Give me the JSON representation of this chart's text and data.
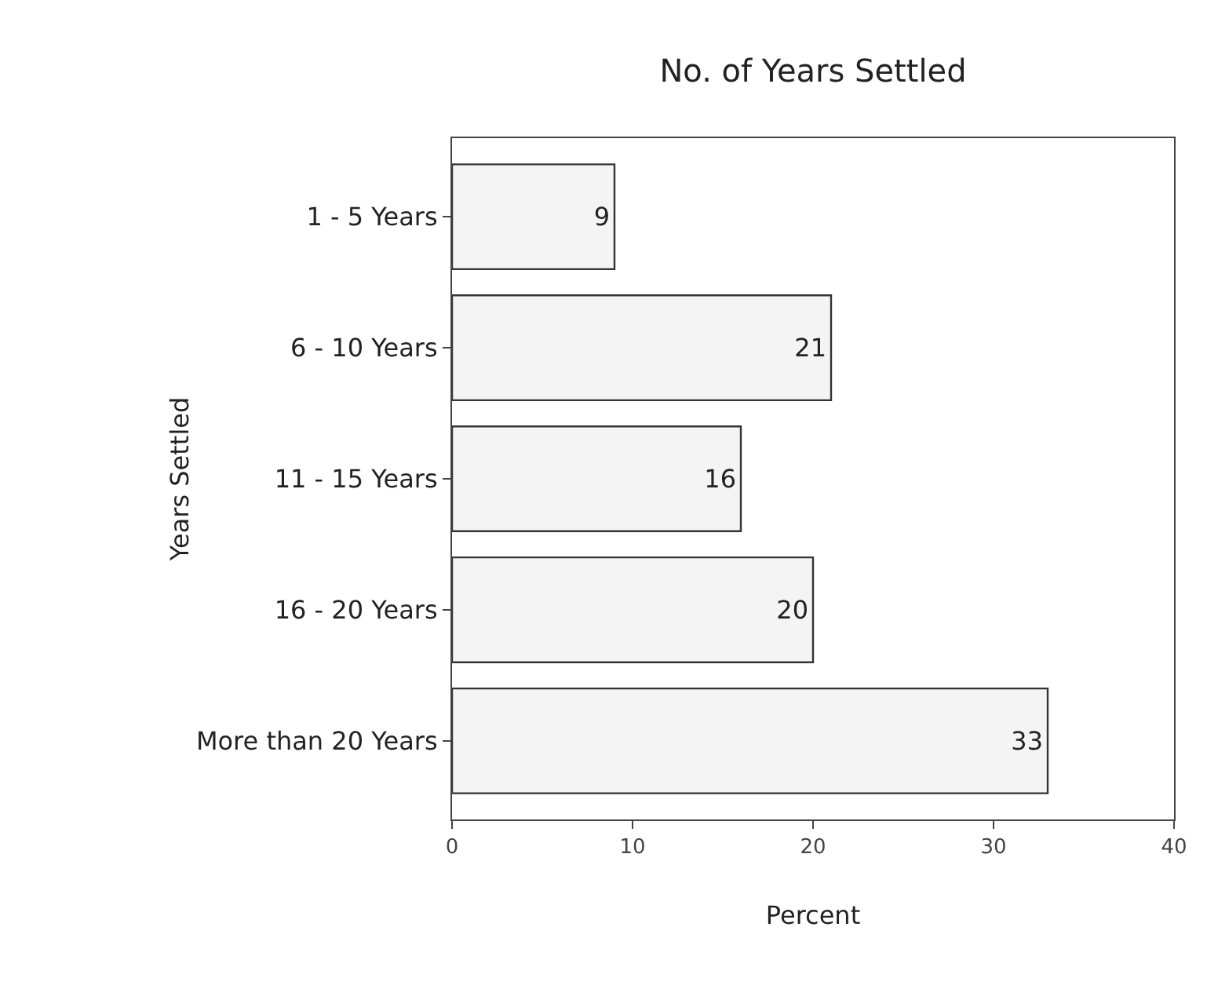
{
  "chart_data": {
    "type": "bar",
    "orientation": "horizontal",
    "title": "No. of Years Settled",
    "xlabel": "Percent",
    "ylabel": "Years Settled",
    "categories": [
      "1 - 5 Years",
      "6 - 10 Years",
      "11 - 15 Years",
      "16 - 20 Years",
      "More than 20 Years"
    ],
    "values": [
      9,
      21,
      16,
      20,
      33
    ],
    "color": "#f4f4f4",
    "xlim": [
      0,
      40
    ],
    "xticks": [
      0,
      10,
      20,
      30,
      40
    ],
    "data_labels": true
  }
}
